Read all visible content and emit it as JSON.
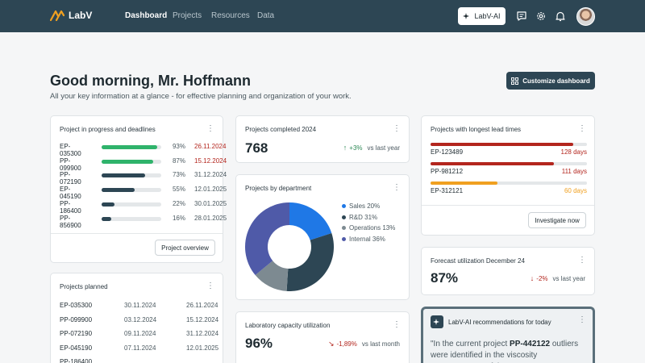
{
  "nav": {
    "brand": "LabV",
    "links": [
      "Dashboard",
      "Projects",
      "Resources",
      "Data"
    ],
    "active": "Dashboard",
    "ai_button": "LabV-AI",
    "icons": [
      "chat-icon",
      "gear-icon",
      "bell-icon",
      "avatar"
    ]
  },
  "header": {
    "greeting": "Good morning, Mr. Hoffmann",
    "subtitle": "All your key information at a glance - for effective planning and organization of your work.",
    "customize_button": "Customize dashboard"
  },
  "in_progress": {
    "title": "Project in progress and deadlines",
    "rows": [
      {
        "id": "EP-035300",
        "progress": 93,
        "pct": "93%",
        "date": "26.11.2024",
        "overdue": true,
        "color": "#2fb36b"
      },
      {
        "id": "PP-099900",
        "progress": 87,
        "pct": "87%",
        "date": "15.12.2024",
        "overdue": true,
        "color": "#2fb36b"
      },
      {
        "id": "PP-072190",
        "progress": 73,
        "pct": "73%",
        "date": "31.12.2024",
        "overdue": false,
        "color": "#2d4654"
      },
      {
        "id": "EP-045190",
        "progress": 55,
        "pct": "55%",
        "date": "12.01.2025",
        "overdue": false,
        "color": "#2d4654"
      },
      {
        "id": "PP-186400",
        "progress": 22,
        "pct": "22%",
        "date": "30.01.2025",
        "overdue": false,
        "color": "#2d4654"
      },
      {
        "id": "PP-856900",
        "progress": 16,
        "pct": "16%",
        "date": "28.01.2025",
        "overdue": false,
        "color": "#2d4654"
      }
    ],
    "button": "Project overview"
  },
  "planned": {
    "title": "Projects planned",
    "rows": [
      {
        "id": "EP-035300",
        "start": "30.11.2024",
        "end": "26.11.2024"
      },
      {
        "id": "PP-099900",
        "start": "03.12.2024",
        "end": "15.12.2024"
      },
      {
        "id": "PP-072190",
        "start": "09.11.2024",
        "end": "31.12.2024"
      },
      {
        "id": "EP-045190",
        "start": "07.11.2024",
        "end": "12.01.2025"
      },
      {
        "id": "PP-186400",
        "start": "",
        "end": ""
      }
    ]
  },
  "completed": {
    "title": "Projects completed 2024",
    "value": "768",
    "delta": "+3%",
    "delta_label": "vs last year"
  },
  "department": {
    "title": "Projects by department",
    "slices": [
      {
        "label": "Sales 20%",
        "value": 20,
        "color": "#1f78e6"
      },
      {
        "label": "R&D 31%",
        "value": 31,
        "color": "#2d4654"
      },
      {
        "label": "Operations 13%",
        "value": 13,
        "color": "#7d8a91"
      },
      {
        "label": "Internal 36%",
        "value": 36,
        "color": "#4f5aa8"
      }
    ]
  },
  "capacity": {
    "title": "Laboratory capacity utilization",
    "value": "96%",
    "delta": "-1,89%",
    "delta_label": "vs last month"
  },
  "lead_times": {
    "title": "Projects with longest lead times",
    "rows": [
      {
        "id": "EP-123489",
        "days": "128 days",
        "value": 128,
        "color": "#b3261e"
      },
      {
        "id": "PP-981212",
        "days": "111 days",
        "value": 111,
        "color": "#b3261e"
      },
      {
        "id": "EP-312121",
        "days": "60 days",
        "value": 60,
        "color": "#f0a020"
      }
    ],
    "button": "Investigate now"
  },
  "forecast": {
    "title": "Forecast utilization December 24",
    "value": "87%",
    "delta": "-2%",
    "delta_label": "vs last year"
  },
  "ai": {
    "title": "LabV-AI recommendations for today",
    "text_before": "\"In the current project ",
    "text_bold": "PP-442122",
    "text_after": " outliers were identified in the viscosity measurements of the"
  }
}
